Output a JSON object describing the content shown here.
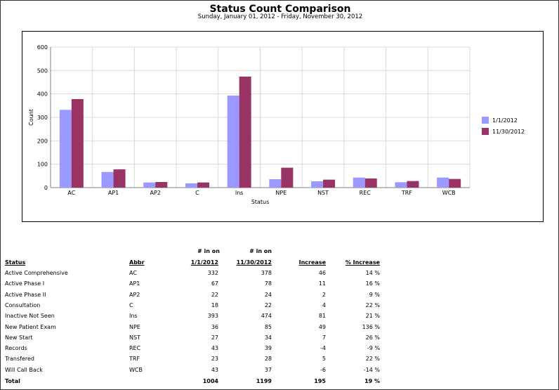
{
  "title": "Status Count Comparison",
  "subtitle": "Sunday, January 01, 2012 - Friday, November 30, 2012",
  "chart_data": {
    "type": "bar",
    "xlabel": "Status",
    "ylabel": "Count",
    "ylim": [
      0,
      600
    ],
    "yticks": [
      "0",
      "100",
      "200",
      "300",
      "400",
      "500",
      "600"
    ],
    "categories": [
      "AC",
      "AP1",
      "AP2",
      "C",
      "Ins",
      "NPE",
      "NST",
      "REC",
      "TRF",
      "WCB"
    ],
    "series": [
      {
        "name": "1/1/2012",
        "color": "#9999ff",
        "values": [
          332,
          67,
          22,
          18,
          393,
          36,
          27,
          43,
          23,
          43
        ]
      },
      {
        "name": "11/30/2012",
        "color": "#993366",
        "values": [
          378,
          78,
          24,
          22,
          474,
          85,
          34,
          39,
          28,
          37
        ]
      }
    ],
    "legend_position": "right"
  },
  "table": {
    "headers": {
      "status": "Status",
      "abbr": "Abbr",
      "col1_top": "# in on",
      "col1": "1/1/2012",
      "col2_top": "# in on",
      "col2": "11/30/2012",
      "increase": "Increase",
      "pct": "% Increase"
    },
    "rows": [
      {
        "status": "Active Comprehensive",
        "abbr": "AC",
        "a": "332",
        "b": "378",
        "inc": "46",
        "pct": "14 %"
      },
      {
        "status": "Active Phase I",
        "abbr": "AP1",
        "a": "67",
        "b": "78",
        "inc": "11",
        "pct": "16 %"
      },
      {
        "status": "Active Phase II",
        "abbr": "AP2",
        "a": "22",
        "b": "24",
        "inc": "2",
        "pct": "9 %"
      },
      {
        "status": "Consultation",
        "abbr": "C",
        "a": "18",
        "b": "22",
        "inc": "4",
        "pct": "22 %"
      },
      {
        "status": "Inactive Not Seen",
        "abbr": "Ins",
        "a": "393",
        "b": "474",
        "inc": "81",
        "pct": "21 %"
      },
      {
        "status": "New Patient Exam",
        "abbr": "NPE",
        "a": "36",
        "b": "85",
        "inc": "49",
        "pct": "136 %"
      },
      {
        "status": "New Start",
        "abbr": "NST",
        "a": "27",
        "b": "34",
        "inc": "7",
        "pct": "26 %"
      },
      {
        "status": "Records",
        "abbr": "REC",
        "a": "43",
        "b": "39",
        "inc": "-4",
        "pct": "-9 %"
      },
      {
        "status": "Transfered",
        "abbr": "TRF",
        "a": "23",
        "b": "28",
        "inc": "5",
        "pct": "22 %"
      },
      {
        "status": "Will Call Back",
        "abbr": "WCB",
        "a": "43",
        "b": "37",
        "inc": "-6",
        "pct": "-14 %"
      }
    ],
    "total": {
      "label": "Total",
      "a": "1004",
      "b": "1199",
      "inc": "195",
      "pct": "19 %"
    }
  }
}
